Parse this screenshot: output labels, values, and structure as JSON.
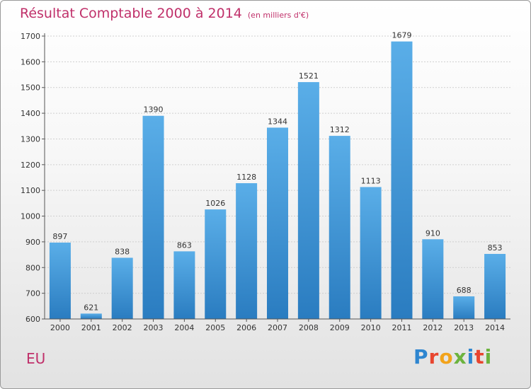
{
  "header": {
    "title": "Résultat Comptable 2000 à 2014",
    "unit": "(en milliers d'€)"
  },
  "region": "EU",
  "logo": {
    "letters": [
      "P",
      "r",
      "o",
      "x",
      "i",
      "t",
      "i"
    ]
  },
  "colors": {
    "bar_top": "#5aaee8",
    "bar_bottom": "#2a7cc0",
    "title": "#c0306a"
  },
  "chart_data": {
    "type": "bar",
    "categories": [
      "2000",
      "2001",
      "2002",
      "2003",
      "2004",
      "2005",
      "2006",
      "2007",
      "2008",
      "2009",
      "2010",
      "2011",
      "2012",
      "2013",
      "2014"
    ],
    "values": [
      897,
      621,
      838,
      1390,
      863,
      1026,
      1128,
      1344,
      1521,
      1312,
      1113,
      1679,
      910,
      688,
      853
    ],
    "yticks": [
      600,
      700,
      800,
      900,
      1000,
      1100,
      1200,
      1300,
      1400,
      1500,
      1600,
      1700
    ],
    "ylim": [
      600,
      1700
    ],
    "grid": true
  }
}
